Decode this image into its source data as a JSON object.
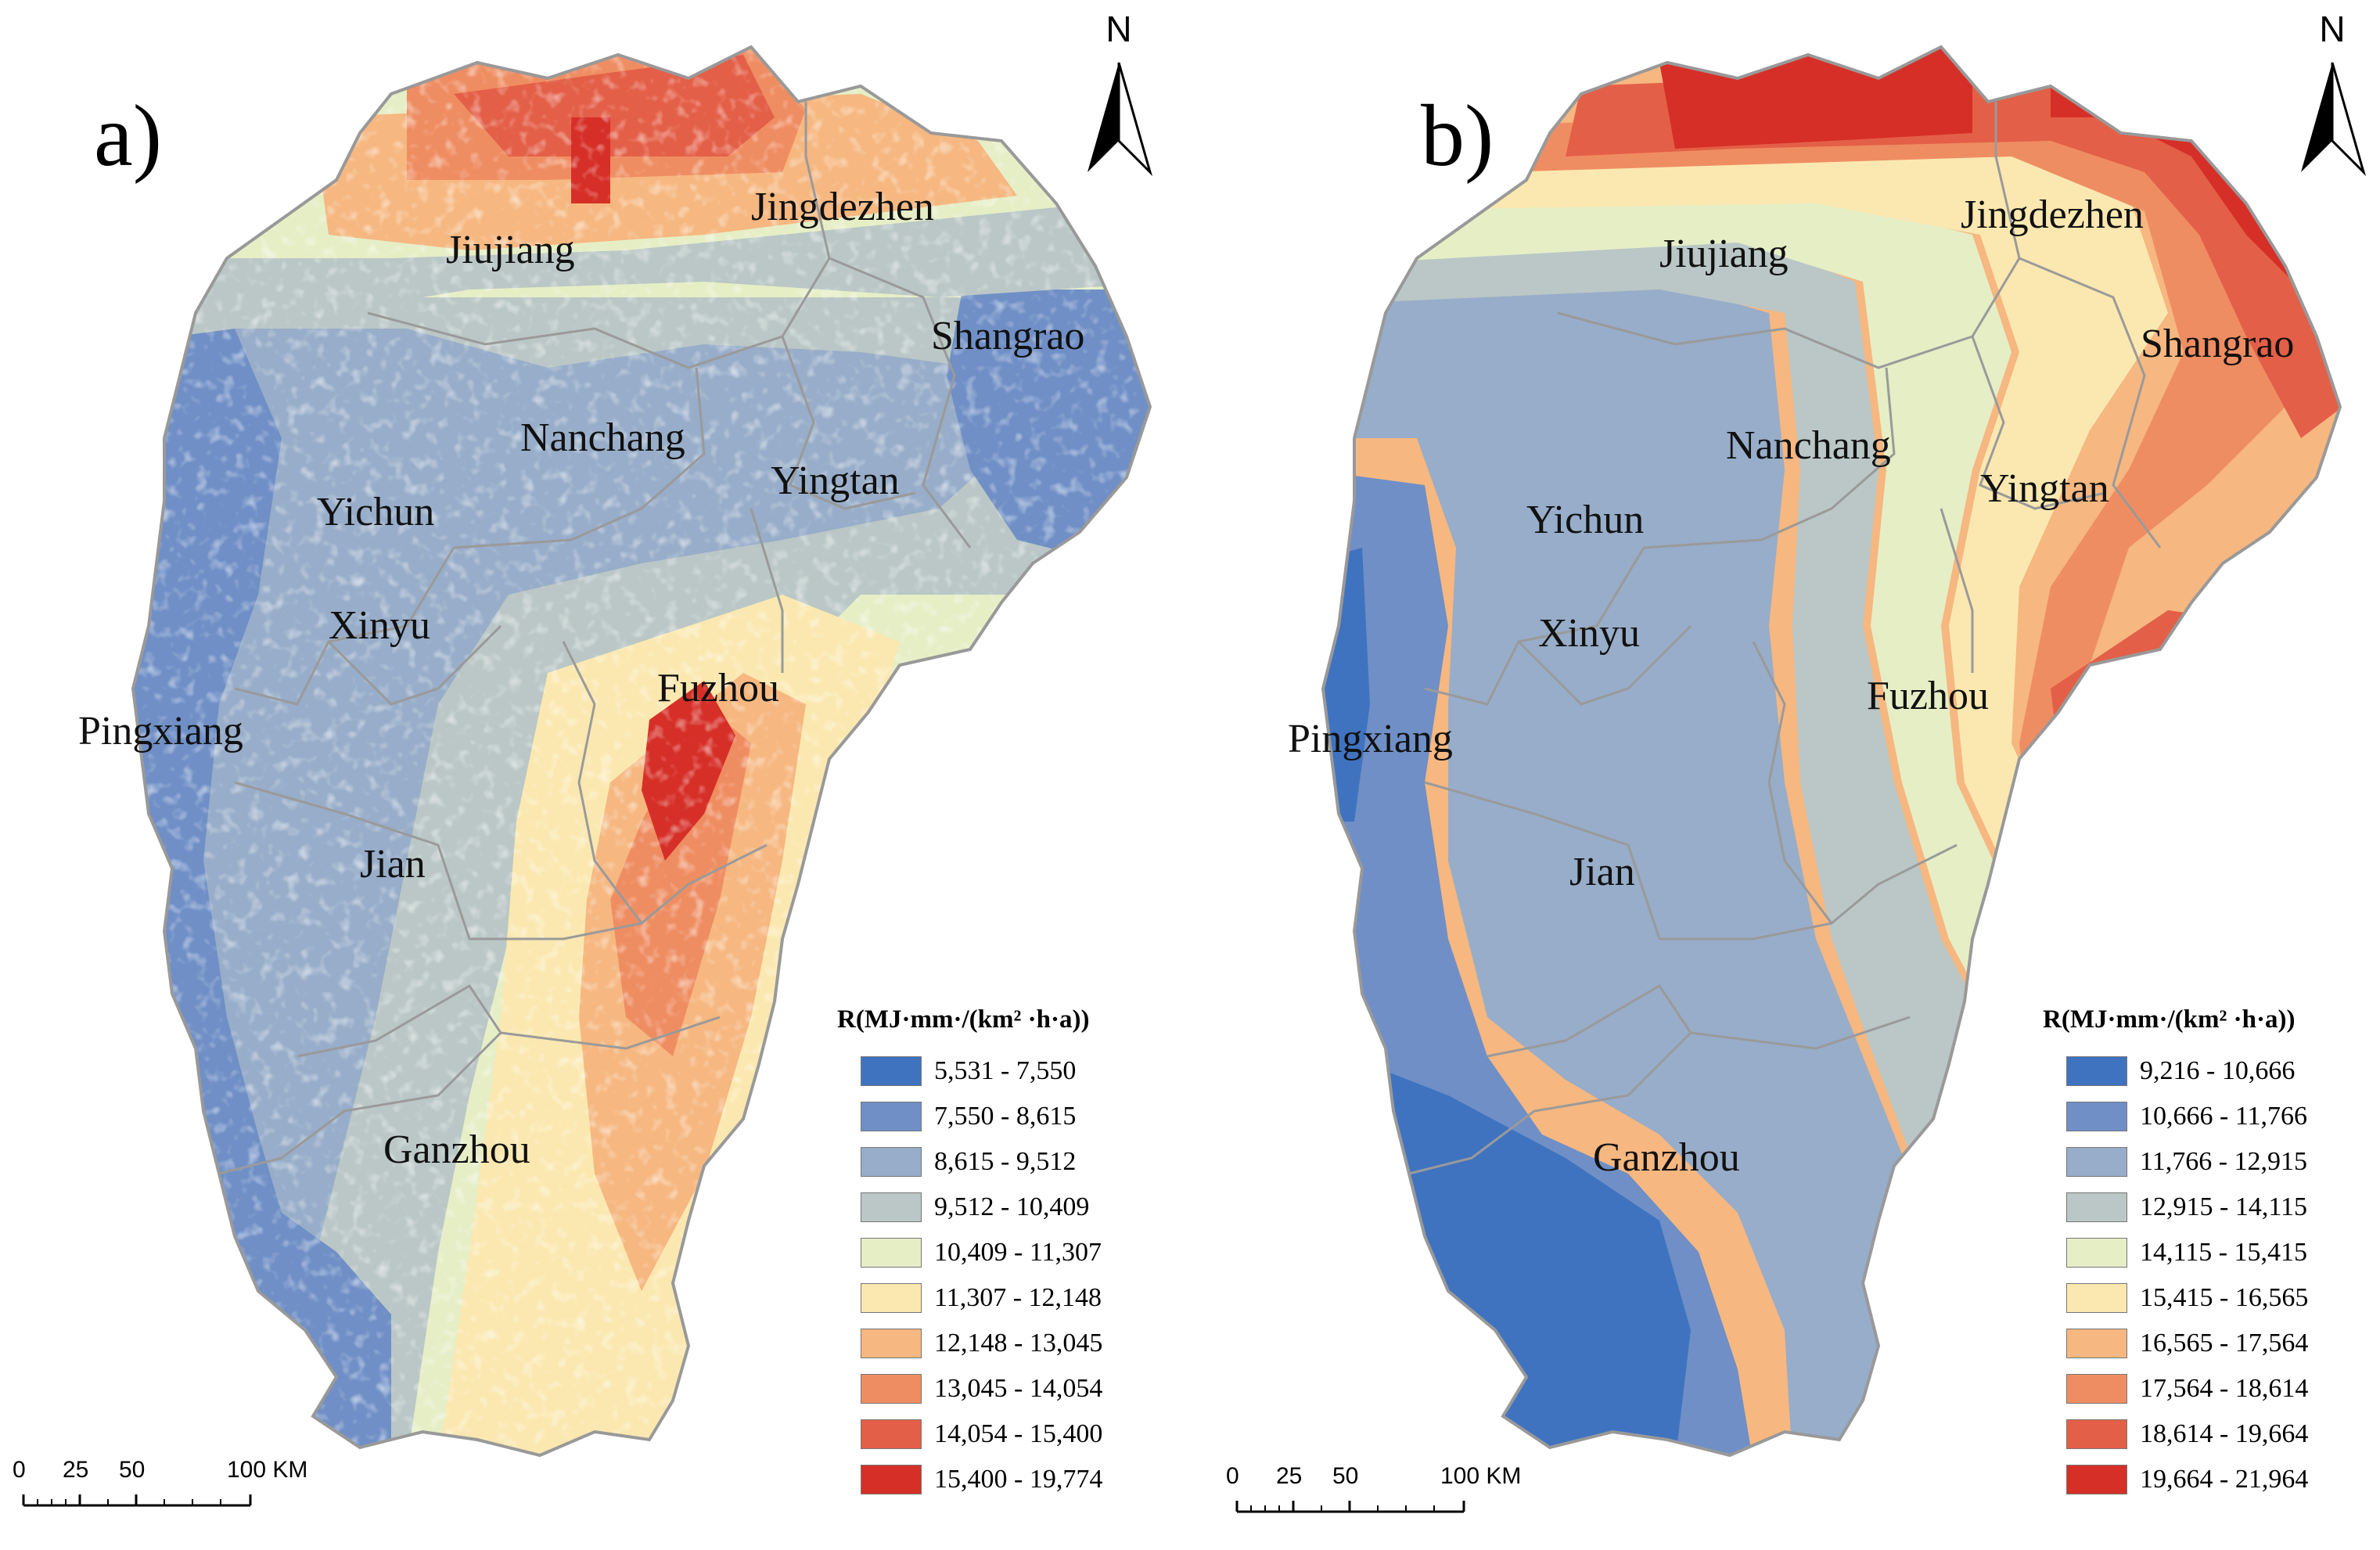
{
  "panels": {
    "a": {
      "label": "a)",
      "north": "N",
      "cities": [
        "Jiujiang",
        "Jingdezhen",
        "Shangrao",
        "Nanchang",
        "Yingtan",
        "Yichun",
        "Xinyu",
        "Fuzhou",
        "Pingxiang",
        "Jian",
        "Ganzhou"
      ],
      "legend": {
        "title": "R(MJ·mm·/(km² ·h·a))",
        "classes": [
          "5,531 - 7,550",
          "7,550 - 8,615",
          "8,615 - 9,512",
          "9,512 - 10,409",
          "10,409 - 11,307",
          "11,307 - 12,148",
          "12,148 - 13,045",
          "13,045 - 14,054",
          "14,054 - 15,400",
          "15,400 - 19,774"
        ]
      },
      "scale": {
        "t0": "0",
        "t1": "25",
        "t2": "50",
        "t3": "100 KM"
      }
    },
    "b": {
      "label": "b)",
      "north": "N",
      "cities": [
        "Jiujiang",
        "Jingdezhen",
        "Shangrao",
        "Nanchang",
        "Yingtan",
        "Yichun",
        "Xinyu",
        "Fuzhou",
        "Pingxiang",
        "Jian",
        "Ganzhou"
      ],
      "legend": {
        "title": "R(MJ·mm·/(km² ·h·a))",
        "classes": [
          "9,216 - 10,666",
          "10,666 - 11,766",
          "11,766 - 12,915",
          "12,915 - 14,115",
          "14,115 - 15,415",
          "15,415 - 16,565",
          "16,565 - 17,564",
          "17,564 - 18,614",
          "18,614 - 19,664",
          "19,664 - 21,964"
        ]
      },
      "scale": {
        "t0": "0",
        "t1": "25",
        "t2": "50",
        "t3": "100 KM"
      }
    }
  },
  "palette": [
    "#3f73c0",
    "#6f8fc6",
    "#97adc9",
    "#bac7c6",
    "#e6eec6",
    "#fbe8b0",
    "#f6b780",
    "#ef8d62",
    "#e45f47",
    "#d62f27"
  ]
}
